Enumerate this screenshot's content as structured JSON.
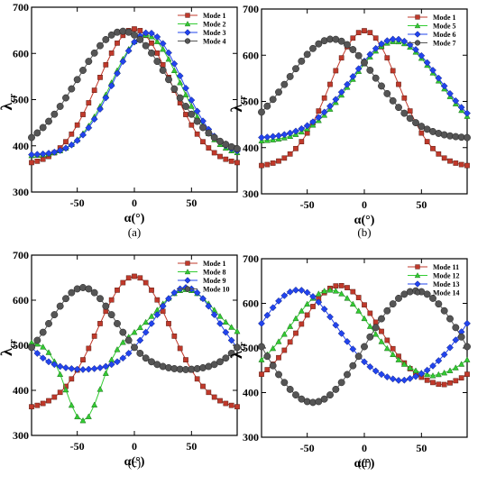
{
  "chart_data": [
    {
      "type": "line",
      "caption": "(a)",
      "xlabel": "α(°)",
      "ylabel": "λcr",
      "xlim": [
        -90,
        90
      ],
      "ylim": [
        300,
        700
      ],
      "xticks": [
        -50,
        0,
        50
      ],
      "yticks": [
        300,
        400,
        500,
        600,
        700
      ],
      "legend_position": "top-right",
      "series": [
        {
          "name": "Mode 1",
          "color": "#c0392b",
          "marker": "square",
          "peak": 0,
          "width": 32,
          "min": 358,
          "max": 653
        },
        {
          "name": "Mode 2",
          "color": "#33cc33",
          "marker": "triangle",
          "peak": 10,
          "width": 30,
          "min": 378,
          "max": 640
        },
        {
          "name": "Mode 3",
          "color": "#2244ee",
          "marker": "diamond",
          "peak": 12,
          "width": 30,
          "min": 380,
          "max": 645
        },
        {
          "name": "Mode 4",
          "color": "#555555",
          "marker": "circle",
          "peak": -10,
          "width": 40,
          "min": 382,
          "max": 648
        }
      ]
    },
    {
      "type": "line",
      "caption": "(b)",
      "xlabel": "α(°)",
      "ylabel": "λcr",
      "xlim": [
        -90,
        90
      ],
      "ylim": [
        300,
        700
      ],
      "xticks": [
        -50,
        0,
        50
      ],
      "yticks": [
        300,
        400,
        500,
        600,
        700
      ],
      "legend_position": "top-right",
      "series": [
        {
          "name": "Mode 1",
          "color": "#c0392b",
          "marker": "square",
          "peak": 0,
          "width": 30,
          "min": 358,
          "max": 653
        },
        {
          "name": "Mode 5",
          "color": "#33cc33",
          "marker": "triangle",
          "peak": 27,
          "width": 38,
          "min": 413,
          "max": 630
        },
        {
          "name": "Mode 6",
          "color": "#2244ee",
          "marker": "diamond",
          "peak": 27,
          "width": 38,
          "min": 420,
          "max": 635
        },
        {
          "name": "Mode 7",
          "color": "#555555",
          "marker": "circle",
          "peak": -28,
          "width": 38,
          "min": 420,
          "max": 635
        }
      ]
    },
    {
      "type": "line",
      "caption": "(c)",
      "xlabel": "α(°)",
      "ylabel": "λcr",
      "xlim": [
        -90,
        90
      ],
      "ylim": [
        300,
        700
      ],
      "xticks": [
        -50,
        0,
        50
      ],
      "yticks": [
        300,
        400,
        500,
        600,
        700
      ],
      "legend_position": "top-right",
      "series": [
        {
          "name": "Mode 1",
          "color": "#c0392b",
          "marker": "square",
          "peak": 0,
          "width": 32,
          "min": 358,
          "max": 653
        },
        {
          "name": "Mode 8",
          "color": "#33cc33",
          "marker": "triangle",
          "kind": "combo",
          "min": 333,
          "max": 625
        },
        {
          "name": "Mode 9",
          "color": "#2244ee",
          "marker": "diamond",
          "peak": 45,
          "width": 28,
          "min": 445,
          "max": 628,
          "period": 180
        },
        {
          "name": "Mode 10",
          "color": "#555555",
          "marker": "circle",
          "peak": -45,
          "width": 28,
          "min": 445,
          "max": 628,
          "period": 180
        }
      ]
    },
    {
      "type": "line",
      "caption": "(d)",
      "xlabel": "α(°)",
      "ylabel": "λcr",
      "xlim": [
        -90,
        90
      ],
      "ylim": [
        300,
        700
      ],
      "xticks": [
        -50,
        0,
        50
      ],
      "yticks": [
        300,
        400,
        500,
        600,
        700
      ],
      "legend_position": "top-right",
      "series": [
        {
          "name": "Mode 11",
          "color": "#c0392b",
          "marker": "square",
          "peak": -22,
          "width": 34,
          "min": 410,
          "max": 640,
          "period": 180
        },
        {
          "name": "Mode 12",
          "color": "#33cc33",
          "marker": "triangle",
          "peak": -30,
          "width": 34,
          "min": 432,
          "max": 630,
          "period": 180
        },
        {
          "name": "Mode 13",
          "color": "#2244ee",
          "marker": "diamond",
          "peak": -58,
          "width": 34,
          "min": 420,
          "max": 630,
          "period": 180
        },
        {
          "name": "Mode 14",
          "color": "#555555",
          "marker": "circle",
          "kind": "cos2",
          "peak": 45,
          "min": 378,
          "max": 628
        }
      ]
    }
  ]
}
